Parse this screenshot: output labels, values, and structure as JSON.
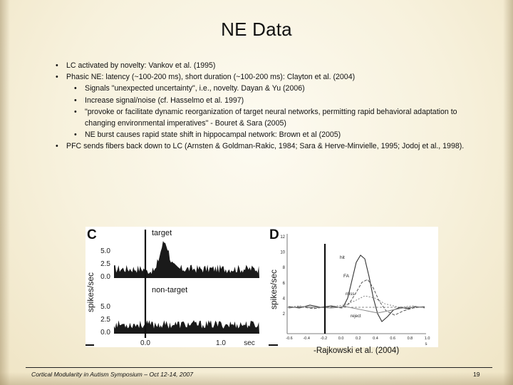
{
  "slide": {
    "title": "NE Data",
    "bullets": [
      {
        "level": 1,
        "text": "LC activated by novelty: Vankov et al. (1995)"
      },
      {
        "level": 1,
        "text": "Phasic NE: latency (~100-200 ms), short duration (~100-200 ms): Clayton et al. (2004)"
      },
      {
        "level": 2,
        "text": "Signals \"unexpected uncertainty\", i.e., novelty. Dayan & Yu (2006)"
      },
      {
        "level": 2,
        "text": "Increase signal/noise (cf. Hasselmo et al. 1997)"
      },
      {
        "level": 2,
        "text": "\"provoke or facilitate dynamic reorganization of target neural networks, permitting rapid behavioral adaptation to changing environmental imperatives\" - Bouret & Sara (2005)"
      },
      {
        "level": 2,
        "text": "NE burst causes rapid state shift in hippocampal network: Brown et al (2005)"
      },
      {
        "level": 1,
        "text": "PFC sends fibers back down to LC (Arnsten & Goldman-Rakic, 1984; Sara & Herve-Minvielle, 1995; Jodoj et al., 1998)."
      }
    ],
    "citation": "-Rajkowski et al. (2004)",
    "footer": "Cortical Modularity in Autism Symposium – Oct 12-14, 2007",
    "page_number": "19"
  },
  "figure": {
    "panel_c": {
      "letter": "C",
      "label_top": "target",
      "label_bottom": "non-target",
      "ylabel": "spikes/sec",
      "yticks_top": [
        "5.0",
        "2.5",
        "0.0"
      ],
      "yticks_bottom": [
        "5.0",
        "2.5",
        "0.0"
      ],
      "xticks": [
        "0.0",
        "1.0",
        "sec"
      ]
    },
    "panel_d": {
      "letter": "D",
      "ylabel": "spikes/sec",
      "yticks": [
        "12",
        "10",
        "8",
        "6",
        "4",
        "2"
      ],
      "xticks": [
        "-0.6",
        "-0.4",
        "-0.2",
        "0.0",
        "0.2",
        "0.4",
        "0.6",
        "0.8",
        "1.0"
      ],
      "xlabel": "s",
      "curve_labels": [
        "hit",
        "FA",
        "miss",
        "reject"
      ]
    }
  }
}
